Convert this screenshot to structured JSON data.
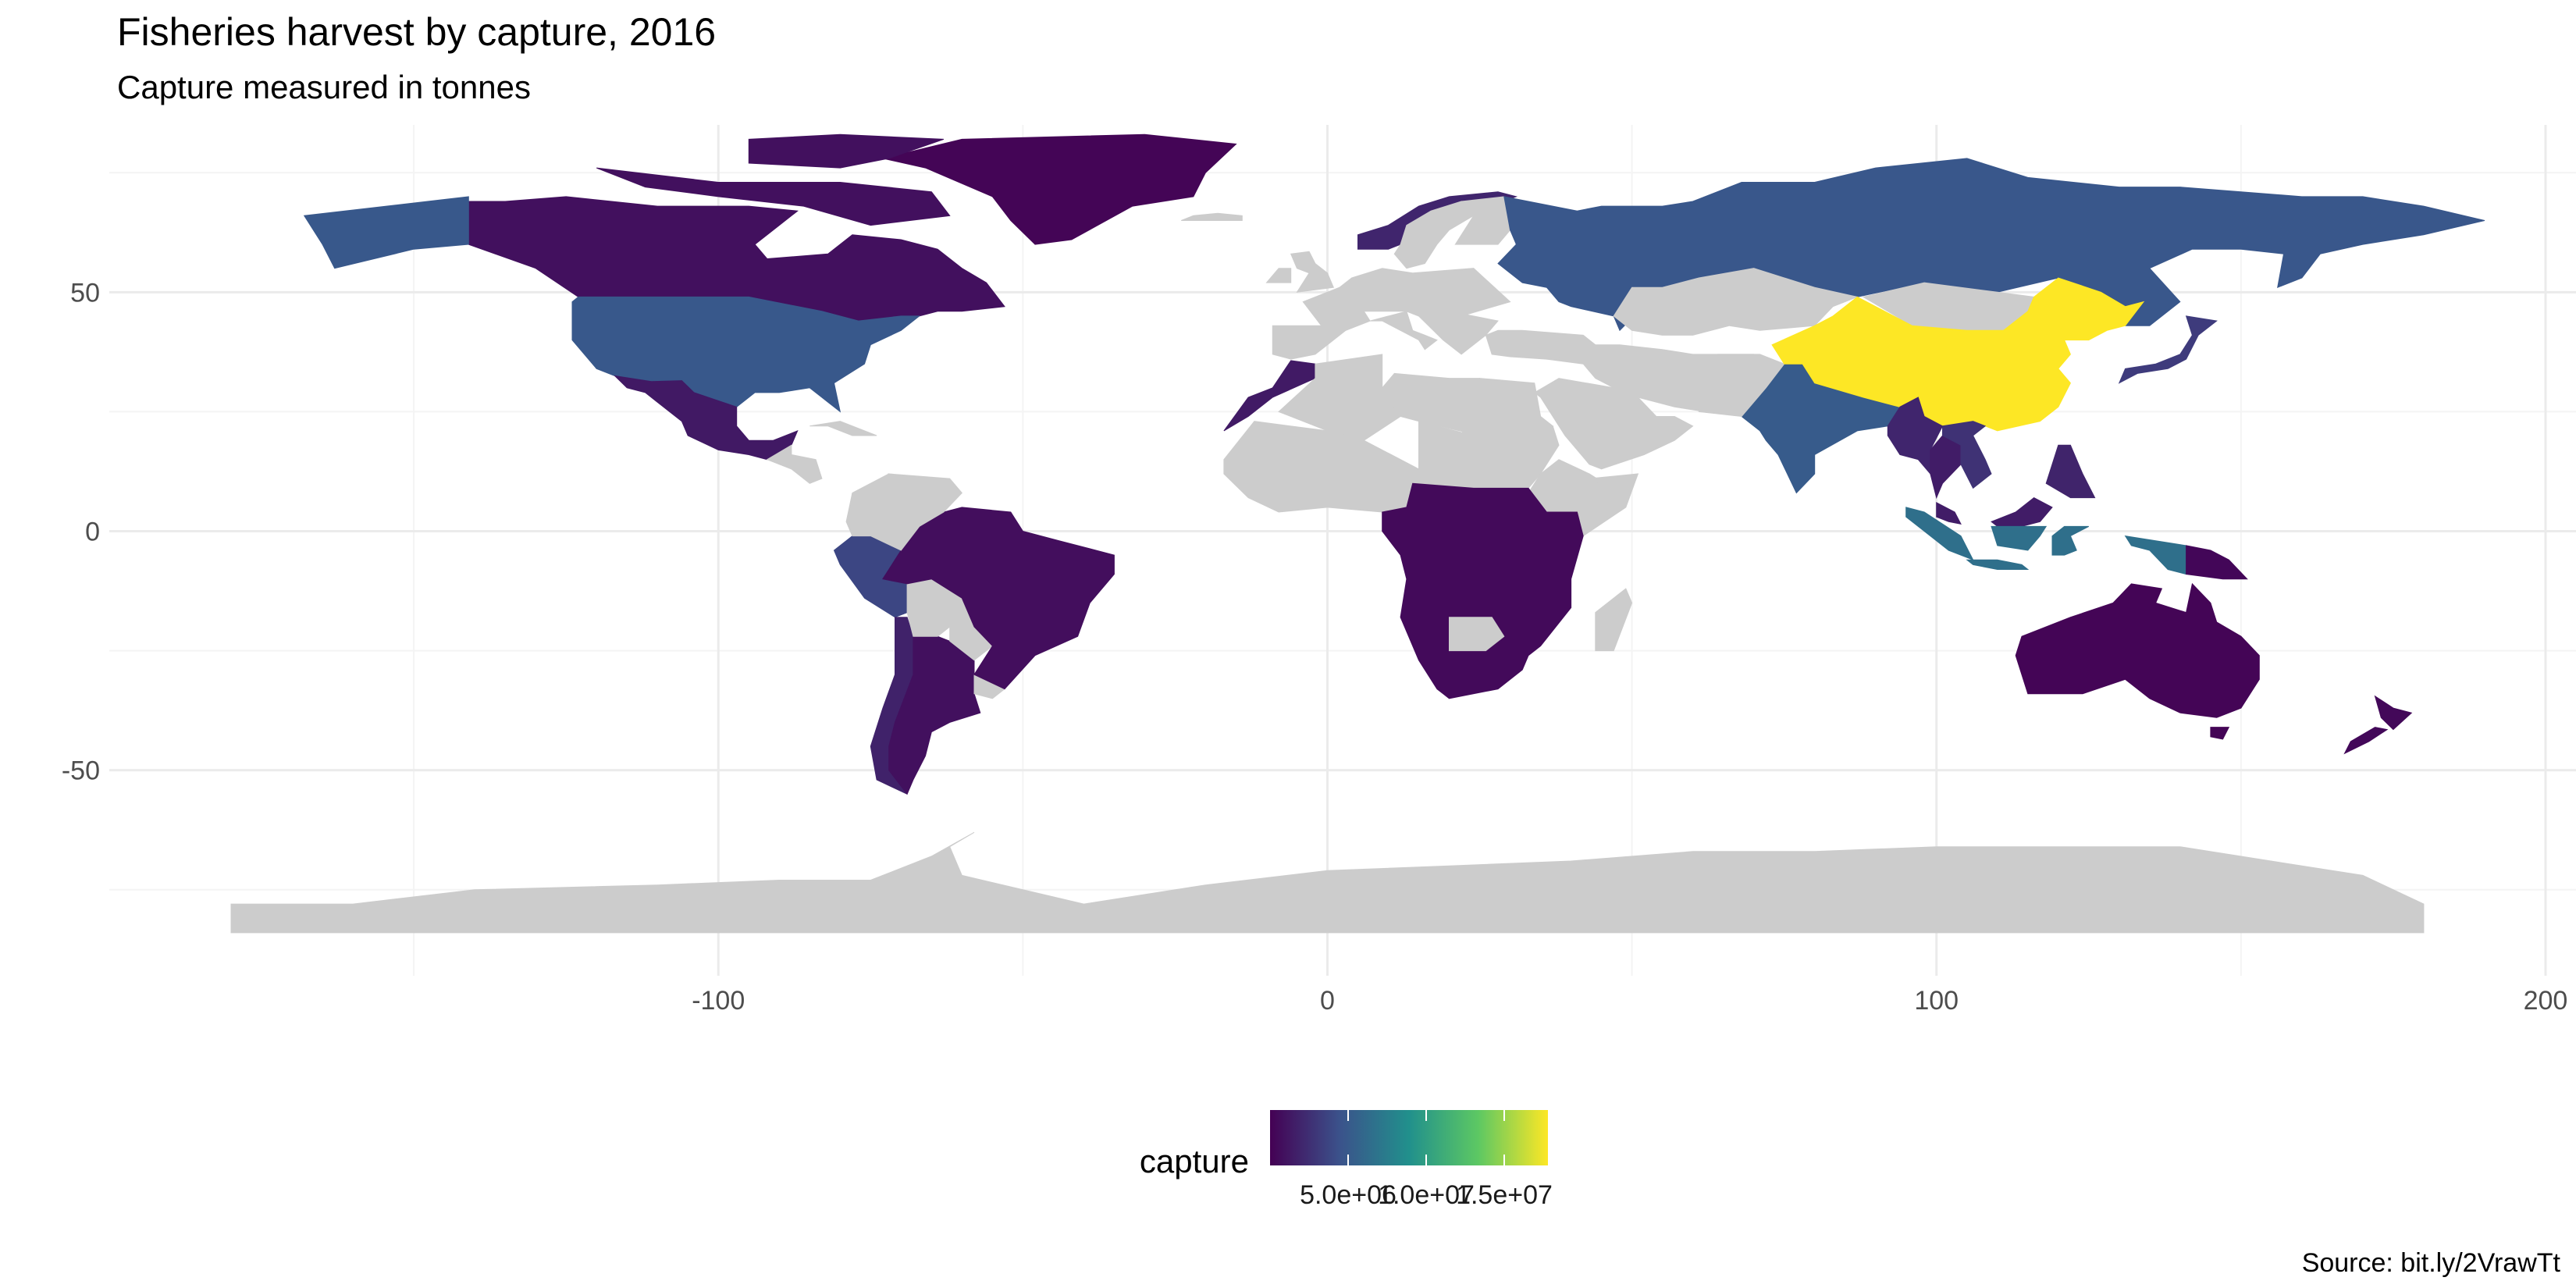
{
  "title": "Fisheries harvest by capture, 2016",
  "subtitle": "Capture measured in tonnes",
  "caption": "Source: bit.ly/2VrawTt",
  "legend": {
    "title": "capture",
    "labels": [
      "5.0e+06",
      "1.0e+07",
      "1.5e+07"
    ],
    "values": [
      5000000,
      10000000,
      15000000
    ],
    "min": 0,
    "max": 17800000,
    "colors": [
      "#440154",
      "#3b528b",
      "#21908c",
      "#5dc863",
      "#fde725"
    ]
  },
  "colors": {
    "no_data": "#cccccc",
    "grid_major": "#ebebeb",
    "grid_minor": "#f4f4f4",
    "background": "#ffffff"
  },
  "chart_data": {
    "type": "choropleth",
    "title": "Fisheries harvest by capture, 2016",
    "subtitle": "Capture measured in tonnes",
    "xlabel": "",
    "ylabel": "",
    "xlim": [
      -200,
      205
    ],
    "ylim": [
      -93,
      85
    ],
    "x_ticks": [
      -100,
      0,
      100,
      200
    ],
    "x_tick_labels": [
      "-100",
      "0",
      "100",
      "200"
    ],
    "y_ticks": [
      -50,
      0,
      50
    ],
    "y_tick_labels": [
      "-50",
      "0",
      "50"
    ],
    "grid": true,
    "legend_position": "bottom",
    "fill_variable": "capture",
    "regions": [
      {
        "country": "China",
        "capture": 17800000
      },
      {
        "country": "Indonesia",
        "capture": 6500000
      },
      {
        "country": "United States",
        "capture": 4900000
      },
      {
        "country": "Russia",
        "capture": 4800000
      },
      {
        "country": "Peru",
        "capture": 3800000
      },
      {
        "country": "India",
        "capture": 5100000
      },
      {
        "country": "Myanmar",
        "capture": 2000000
      },
      {
        "country": "Vietnam",
        "capture": 2700000
      },
      {
        "country": "Japan",
        "capture": 3200000
      },
      {
        "country": "Norway",
        "capture": 2000000
      },
      {
        "country": "Chile",
        "capture": 1800000
      },
      {
        "country": "Philippines",
        "capture": 1900000
      },
      {
        "country": "Thailand",
        "capture": 1500000
      },
      {
        "country": "Malaysia",
        "capture": 1500000
      },
      {
        "country": "Mexico",
        "capture": 1300000
      },
      {
        "country": "Morocco",
        "capture": 1400000
      },
      {
        "country": "Argentina",
        "capture": 800000
      },
      {
        "country": "Canada",
        "capture": 800000
      },
      {
        "country": "Brazil",
        "capture": 700000
      },
      {
        "country": "Australia",
        "capture": 200000
      },
      {
        "country": "Greenland",
        "capture": 200000
      },
      {
        "country": "New Zealand",
        "capture": 400000
      },
      {
        "country": "South Africa",
        "capture": 500000
      },
      {
        "country": "Papua New Guinea",
        "capture": 300000
      }
    ],
    "no_data_regions": [
      "Antarctica",
      "Algeria",
      "Libya",
      "Sudan",
      "Ethiopia",
      "Kazakhstan",
      "Mongolia",
      "Turkey",
      "Bolivia",
      "Paraguay",
      "Uruguay",
      "Botswana",
      "Zimbabwe",
      "Somalia",
      "Cuba",
      "Guatemala"
    ]
  }
}
